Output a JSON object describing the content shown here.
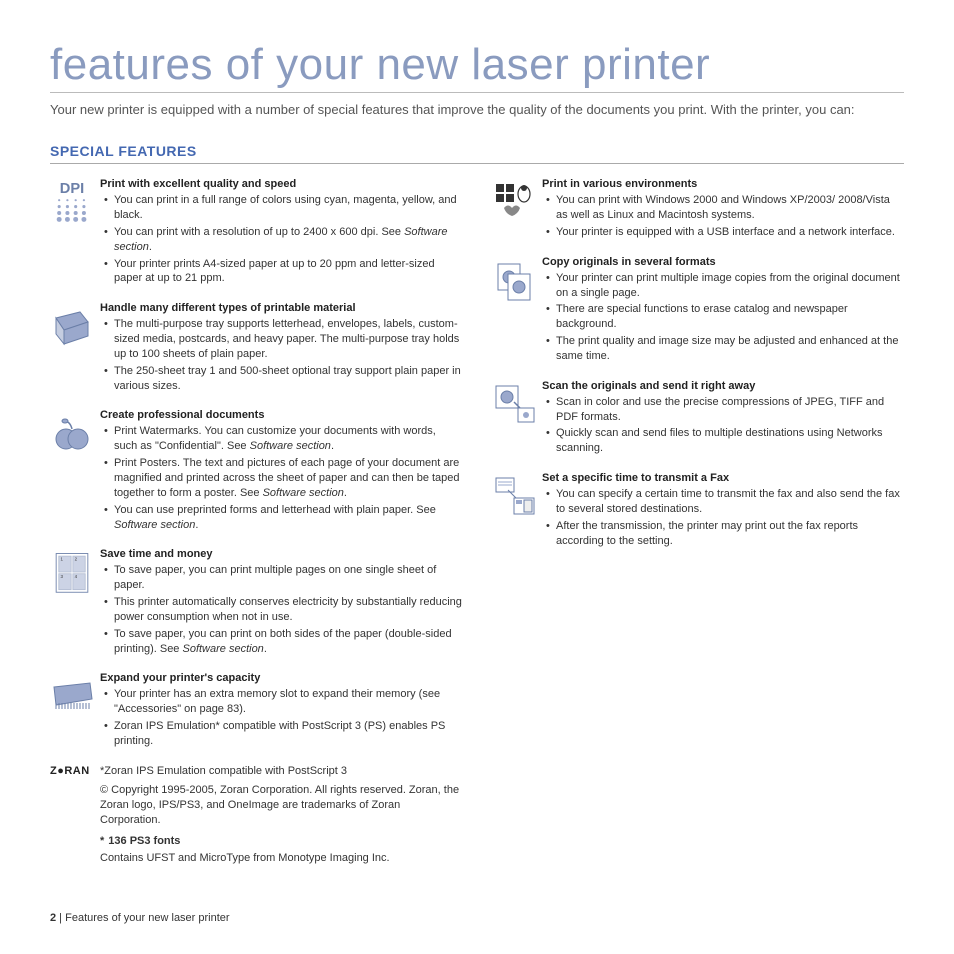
{
  "title": "features of your new laser printer",
  "intro": "Your new printer is equipped with a number of special features that improve the quality of the documents you print. With the printer, you can:",
  "sectionHeading": "SPECIAL FEATURES",
  "colors": {
    "accent": "#4468b1",
    "titleColor": "#8a9bbf",
    "iconFill": "#9aa8cc",
    "iconStroke": "#6b7fa8"
  },
  "leftFeatures": [
    {
      "icon": "dpi",
      "heading": "Print with excellent quality and speed",
      "items": [
        "You can print in a full range of colors using cyan, magenta, yellow, and black.",
        "You can print with a resolution of up to 2400 x 600 dpi. See <em>Software section</em>.",
        "Your printer prints A4-sized paper at up to 20 ppm and letter-sized paper at up to 21 ppm."
      ]
    },
    {
      "icon": "paper",
      "heading": "Handle many different types of printable material",
      "items": [
        "The multi-purpose tray supports letterhead, envelopes, labels, custom-sized media, postcards, and heavy paper. The multi-purpose tray holds up to 100 sheets of plain paper.",
        "The 250-sheet tray 1 and 500-sheet optional tray support plain paper in various sizes."
      ]
    },
    {
      "icon": "apple",
      "heading": "Create professional documents",
      "items": [
        "Print Watermarks. You can customize your documents with words, such as \"Confidential\". See <em>Software section</em>.",
        "Print Posters. The text and pictures of each page of your document are magnified and printed across the sheet of paper and can then be taped together to form a poster. See <em>Software section</em>.",
        "You can use preprinted forms and letterhead with plain paper. See <em>Software section</em>."
      ]
    },
    {
      "icon": "nup",
      "heading": "Save time and money",
      "items": [
        "To save paper, you can print multiple pages on one single sheet of paper.",
        "This printer automatically conserves electricity by substantially reducing power consumption when not in use.",
        "To save paper, you can print on both sides of the paper (double-sided printing). See <em>Software section</em>."
      ]
    },
    {
      "icon": "memory",
      "heading": "Expand your printer's capacity",
      "items": [
        "Your printer has an extra memory slot to expand their memory (see \"Accessories\" on page 83).",
        "Zoran IPS Emulation* compatible with PostScript 3 (PS) enables PS printing."
      ]
    }
  ],
  "zoran": {
    "logo": "Z●RAN",
    "title": "Zoran IPS Emulation compatible with PostScript 3",
    "copyright": "© Copyright 1995-2005, Zoran Corporation. All rights reserved. Zoran, the Zoran logo, IPS/PS3, and OneImage are trademarks of Zoran Corporation.",
    "fontsTitle": "136 PS3 fonts",
    "fontsBody": "Contains UFST and MicroType from Monotype Imaging Inc."
  },
  "rightFeatures": [
    {
      "icon": "os",
      "heading": "Print in various environments",
      "items": [
        "You can print with Windows 2000 and Windows XP/2003/ 2008/Vista as well as Linux and Macintosh systems.",
        "Your printer is equipped with a USB interface and a network interface."
      ]
    },
    {
      "icon": "copy",
      "heading": "Copy originals in several formats",
      "items": [
        "Your printer can print multiple image copies from the original document on a single page.",
        "There are special functions to erase catalog and newspaper background.",
        "The print quality and image size may be adjusted and enhanced at the same time."
      ]
    },
    {
      "icon": "scan",
      "heading": "Scan the originals and send it right away",
      "items": [
        "Scan in color and use the precise compressions of JPEG, TIFF and PDF formats.",
        "Quickly scan and send files to multiple destinations using Networks scanning."
      ]
    },
    {
      "icon": "fax",
      "heading": "Set a specific time to transmit a Fax",
      "items": [
        "You can specify a certain time to transmit the fax and also send the fax to several stored destinations.",
        "After the transmission, the printer may print out the fax reports according to the setting."
      ]
    }
  ],
  "footer": {
    "pageNum": "2",
    "sep": " | ",
    "label": "Features of your new laser printer"
  }
}
